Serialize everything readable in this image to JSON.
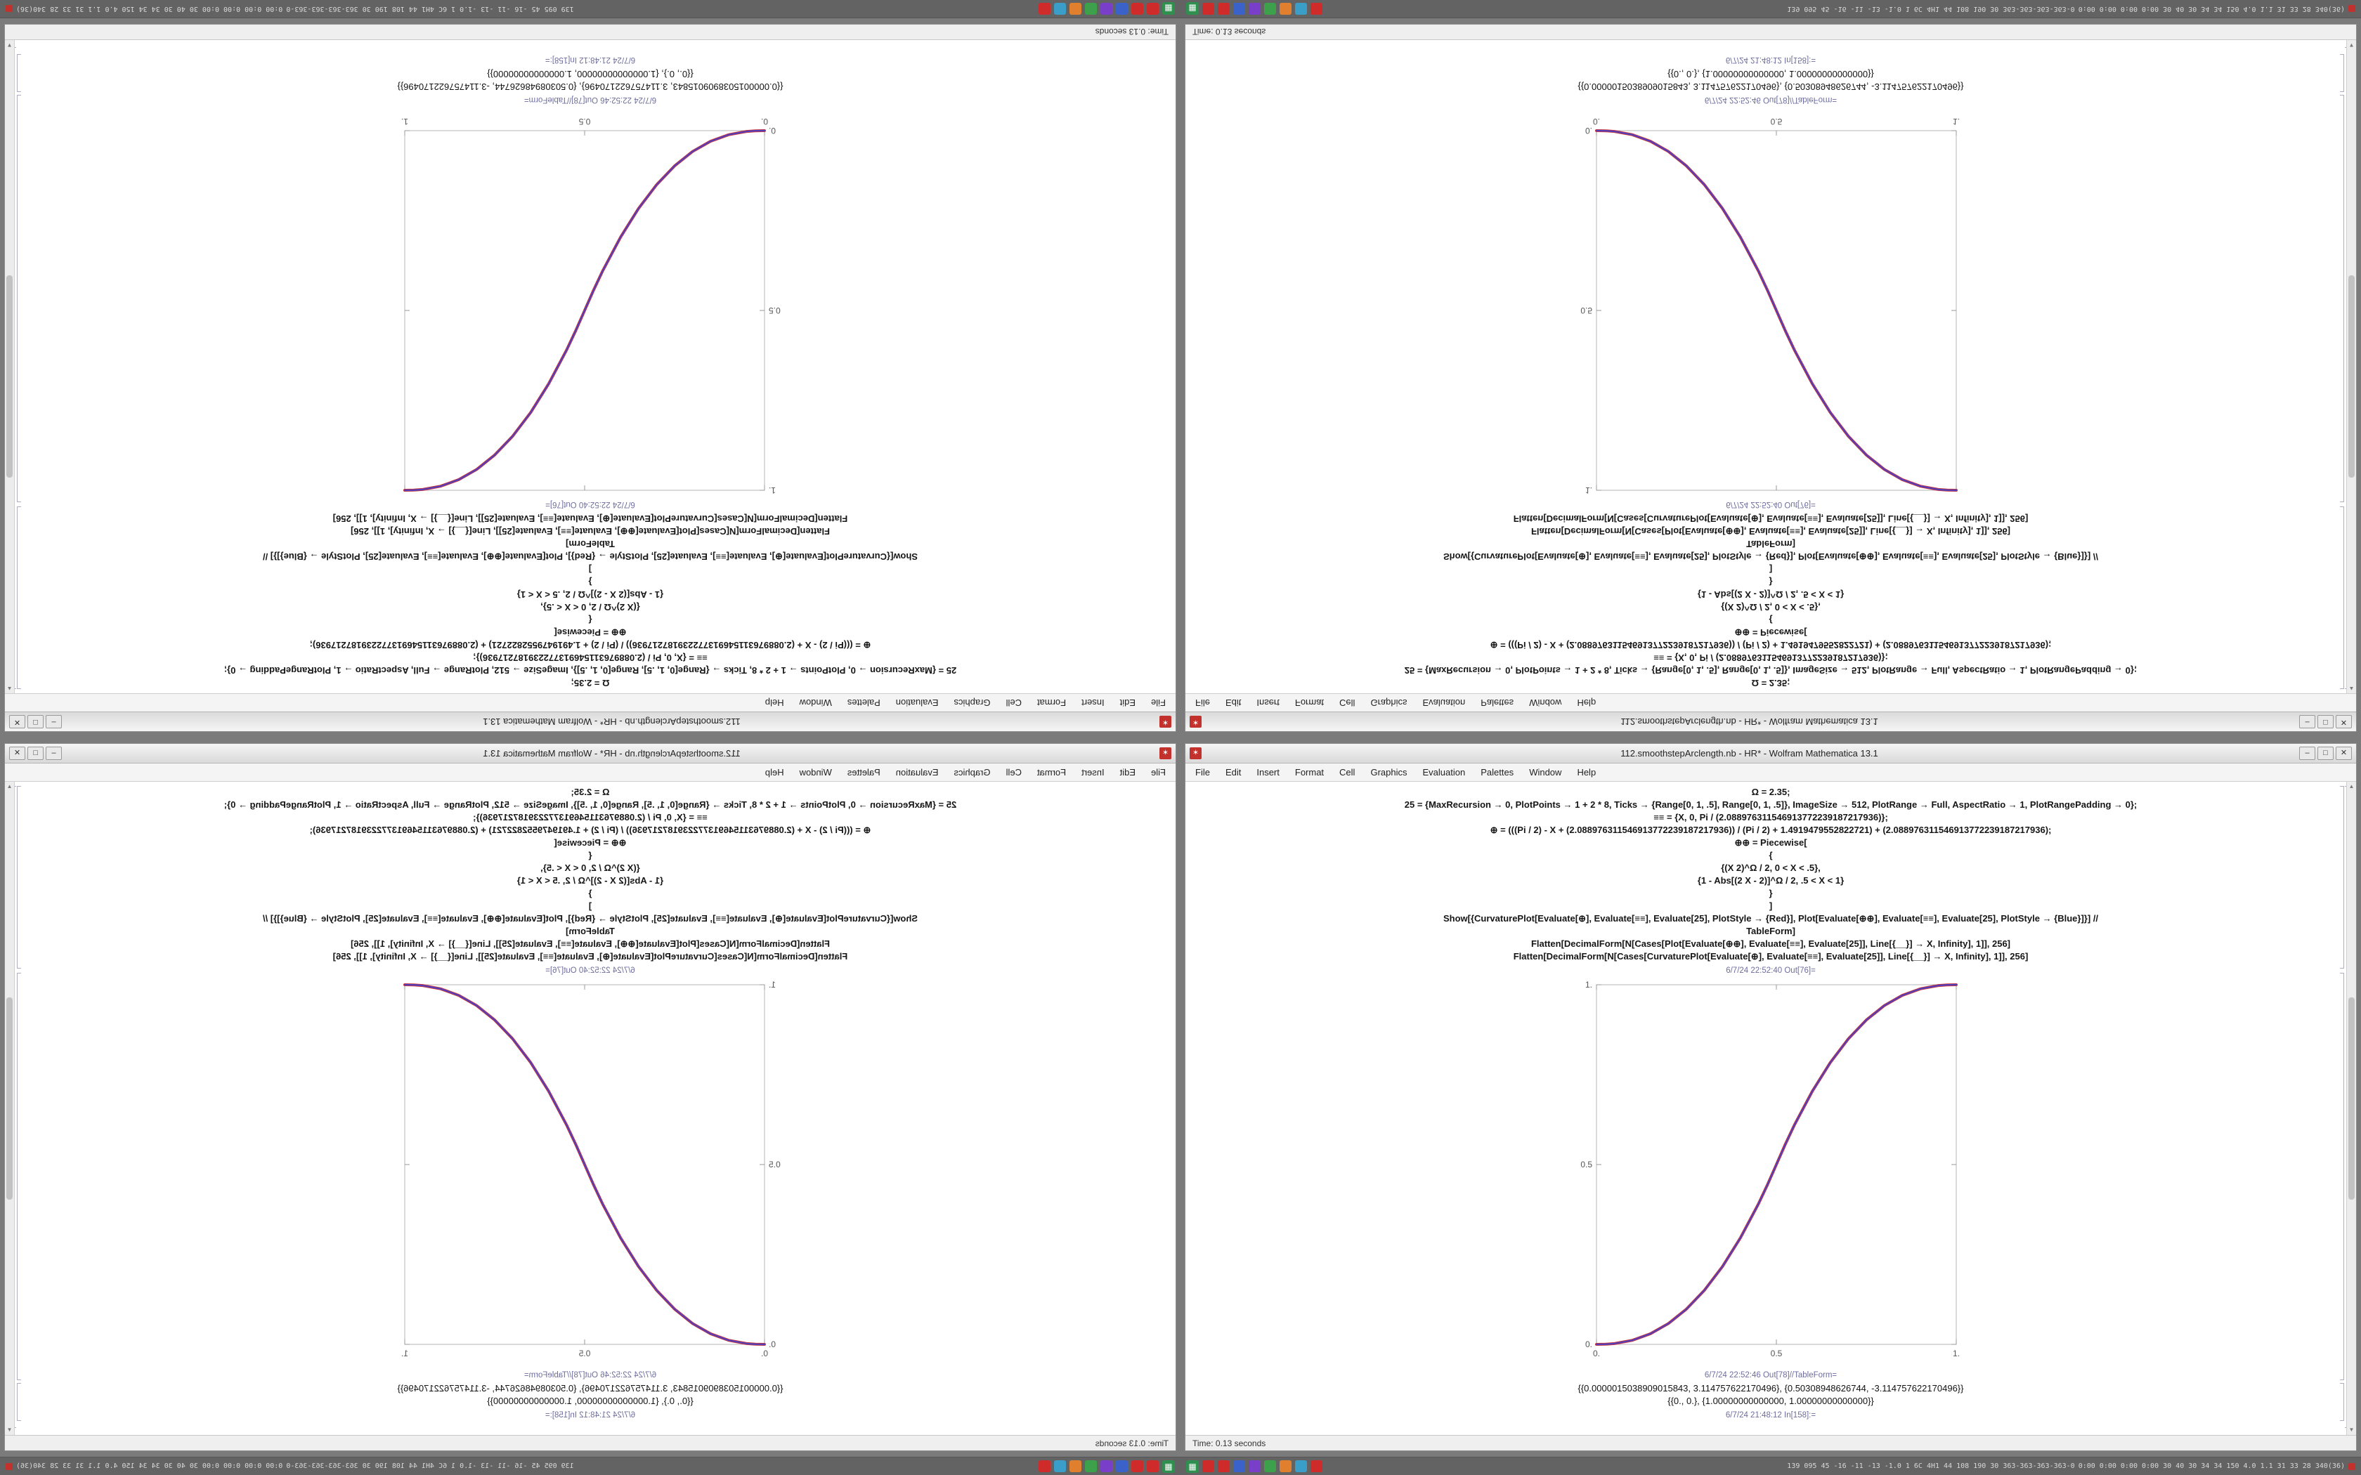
{
  "desktop": {
    "background": "#7b7b7b"
  },
  "icons": {
    "app": "✶",
    "launcher": "▦",
    "minimize": "–",
    "maximize": "□",
    "close": "✕",
    "scroll_up": "▲",
    "scroll_down": "▼"
  },
  "window": {
    "title": "112.smoothstepArclength.nb - HR* - Wolfram Mathematica 13.1",
    "menu_items": [
      "File",
      "Edit",
      "Insert",
      "Format",
      "Cell",
      "Graphics",
      "Evaluation",
      "Palettes",
      "Window",
      "Help"
    ],
    "status": "Time: 0.13 seconds",
    "cells": [
      {
        "kind": "code",
        "text": "Ω = 2.35;"
      },
      {
        "kind": "code",
        "text": "25 = {MaxRecursion → 0, PlotPoints → 1 + 2 * 8, Ticks → {Range[0, 1, .5], Range[0, 1, .5]}, ImageSize → 512, PlotRange → Full, AspectRatio → 1, PlotRangePadding → 0};"
      },
      {
        "kind": "code",
        "text": "≡≡ = {X, 0, Pi / (2.088976311546913772239187217936)};"
      },
      {
        "kind": "code",
        "text": "⊕ = (((Pi / 2) - X + (2.088976311546913772239187217936)) / (Pi / 2) + 1.4919479552822721) + (2.088976311546913772239187217936);"
      },
      {
        "kind": "code",
        "text": "⊕⊕ = Piecewise["
      },
      {
        "kind": "code",
        "text": "{"
      },
      {
        "kind": "code",
        "text": "{(X 2)^Ω / 2, 0 < X < .5},"
      },
      {
        "kind": "code",
        "text": "{1 - Abs[(2 X - 2)]^Ω / 2, .5 < X < 1}"
      },
      {
        "kind": "code",
        "text": "}"
      },
      {
        "kind": "code",
        "text": "]"
      },
      {
        "kind": "code",
        "text": "Show[{CurvaturePlot[Evaluate[⊕], Evaluate[≡≡], Evaluate[25], PlotStyle → {Red}], Plot[Evaluate[⊕⊕], Evaluate[≡≡], Evaluate[25], PlotStyle → {Blue}]}] //"
      },
      {
        "kind": "code",
        "text": "TableForm]"
      },
      {
        "kind": "code",
        "text": "Flatten[DecimalForm[N[Cases[Plot[Evaluate[⊕⊕], Evaluate[≡≡], Evaluate[25]], Line[{__}] → X, Infinity], 1]], 256]"
      },
      {
        "kind": "code",
        "text": "Flatten[DecimalForm[N[Cases[CurvaturePlot[Evaluate[⊕], Evaluate[≡≡], Evaluate[25]], Line[{__}] → X, Infinity], 1]], 256]"
      },
      {
        "kind": "label",
        "text": "6/7/24 22:52:40 Out[76]="
      },
      {
        "kind": "plot"
      },
      {
        "kind": "label",
        "text": "6/7/24 22:52:46 Out[78]//TableForm="
      },
      {
        "kind": "output",
        "text": "{{0.0000015038909015843, 3.114757622170496}, {0.50308948626744, -3.114757622170496}}"
      },
      {
        "kind": "output",
        "text": "{{0., 0.}, {1.00000000000000, 1.00000000000000}}"
      },
      {
        "kind": "label",
        "text": "6/7/24 21:48:12 In[158]:="
      }
    ]
  },
  "taskbar": {
    "apps": [
      {
        "color": "#cf2b2b"
      },
      {
        "color": "#cf2b2b"
      },
      {
        "color": "#3a62c9"
      },
      {
        "color": "#7a3fc9"
      },
      {
        "color": "#3da04b"
      },
      {
        "color": "#e07f2e"
      },
      {
        "color": "#3a9ec9"
      },
      {
        "color": "#cf2b2b"
      }
    ],
    "sysmon_text": "139 095 45 -16 -11 -13 -1.0 1 6C 4H1 44 108 190 30 363-363-363-363-0",
    "readout_text": "0:00 0:00 0:00 0:00 30 40 30 34 34 150 4.0 1.1 31 33 28 340(36)"
  },
  "tiles": [
    {
      "id": "top-left",
      "flip": "both"
    },
    {
      "id": "top-right",
      "flip": "vertical"
    },
    {
      "id": "bottom-left",
      "flip": "horizontal"
    },
    {
      "id": "bottom-right",
      "flip": "none"
    }
  ],
  "chart_data": {
    "type": "line",
    "title": "",
    "xlabel": "",
    "ylabel": "",
    "x_range": [
      0,
      1
    ],
    "y_range": [
      0,
      1
    ],
    "frame": true,
    "grid": false,
    "legend": "none",
    "x_tick_values": [
      0,
      0.5,
      1
    ],
    "x_ticks": [
      "0.",
      "0.5",
      "1."
    ],
    "y_tick_values": [
      0,
      0.5,
      1
    ],
    "y_ticks": [
      "0.",
      "0.5",
      "1."
    ],
    "series": [
      {
        "name": "CurvaturePlot[⊕] (Red)",
        "color": "#d23535"
      },
      {
        "name": "Plot[⊕⊕] (Blue)",
        "color": "#4141cd"
      }
    ],
    "points": [
      [
        0,
        0
      ],
      [
        0.025,
        0.0004
      ],
      [
        0.05,
        0.0022
      ],
      [
        0.1,
        0.0114
      ],
      [
        0.15,
        0.0295
      ],
      [
        0.2,
        0.058
      ],
      [
        0.25,
        0.0981
      ],
      [
        0.3,
        0.1505
      ],
      [
        0.35,
        0.2162
      ],
      [
        0.4,
        0.296
      ],
      [
        0.45,
        0.3903
      ],
      [
        0.475,
        0.4433
      ],
      [
        0.5,
        0.5
      ],
      [
        0.525,
        0.5567
      ],
      [
        0.55,
        0.6097
      ],
      [
        0.6,
        0.704
      ],
      [
        0.65,
        0.7838
      ],
      [
        0.7,
        0.8495
      ],
      [
        0.75,
        0.9019
      ],
      [
        0.8,
        0.942
      ],
      [
        0.85,
        0.9705
      ],
      [
        0.9,
        0.9886
      ],
      [
        0.95,
        0.9978
      ],
      [
        0.975,
        0.9996
      ],
      [
        1,
        1
      ]
    ]
  }
}
